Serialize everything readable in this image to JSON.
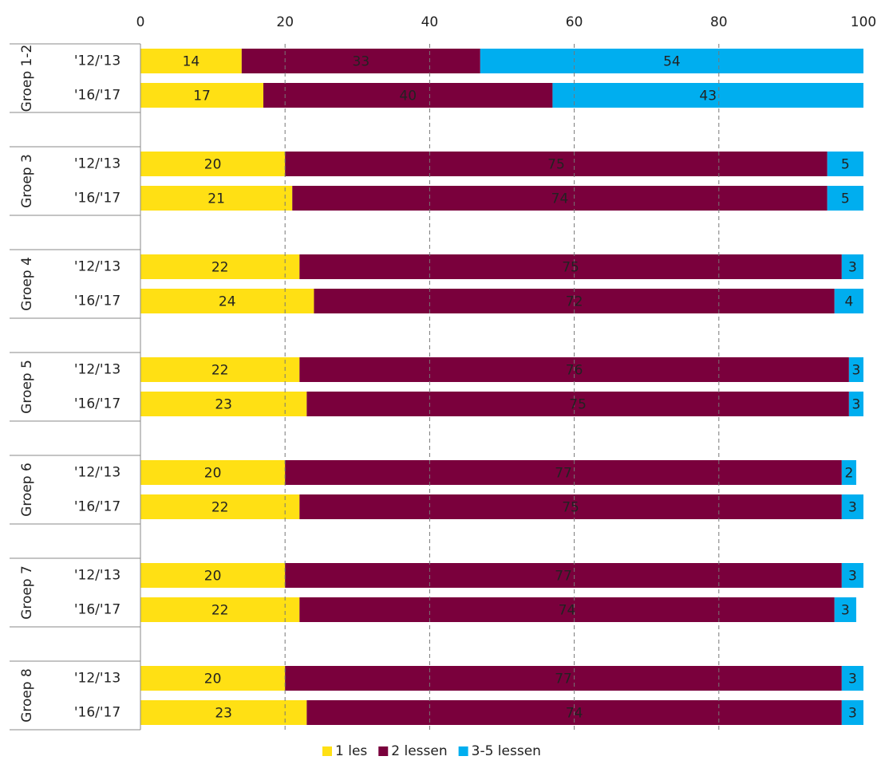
{
  "chart_data": {
    "type": "stacked-barh",
    "groups": [
      "Groep 1-2",
      "Groep 3",
      "Groep 4",
      "Groep 5",
      "Groep 6",
      "Groep 7",
      "Groep 8"
    ],
    "categories": [
      "'12/'13",
      "'16/'17",
      "'12/'13",
      "'16/'17",
      "'12/'13",
      "'16/'17",
      "'12/'13",
      "'16/'17",
      "'12/'13",
      "'16/'17",
      "'12/'13",
      "'16/'17",
      "'12/'13",
      "'16/'17"
    ],
    "series": [
      {
        "name": "1 les",
        "color": "#ffe014",
        "values": [
          14,
          17,
          20,
          21,
          22,
          24,
          22,
          23,
          20,
          22,
          20,
          22,
          20,
          23
        ]
      },
      {
        "name": "2 lessen",
        "color": "#7a003c",
        "values": [
          33,
          40,
          75,
          74,
          75,
          72,
          76,
          75,
          77,
          75,
          77,
          74,
          77,
          74
        ]
      },
      {
        "name": "3-5 lessen",
        "color": "#00aeef",
        "values": [
          54,
          43,
          5,
          5,
          3,
          4,
          3,
          3,
          2,
          3,
          3,
          3,
          3,
          3
        ]
      }
    ],
    "xlim": [
      0,
      100
    ],
    "xticks": [
      0,
      20,
      40,
      60,
      80,
      100
    ],
    "grid": true,
    "legend": "bottom"
  }
}
